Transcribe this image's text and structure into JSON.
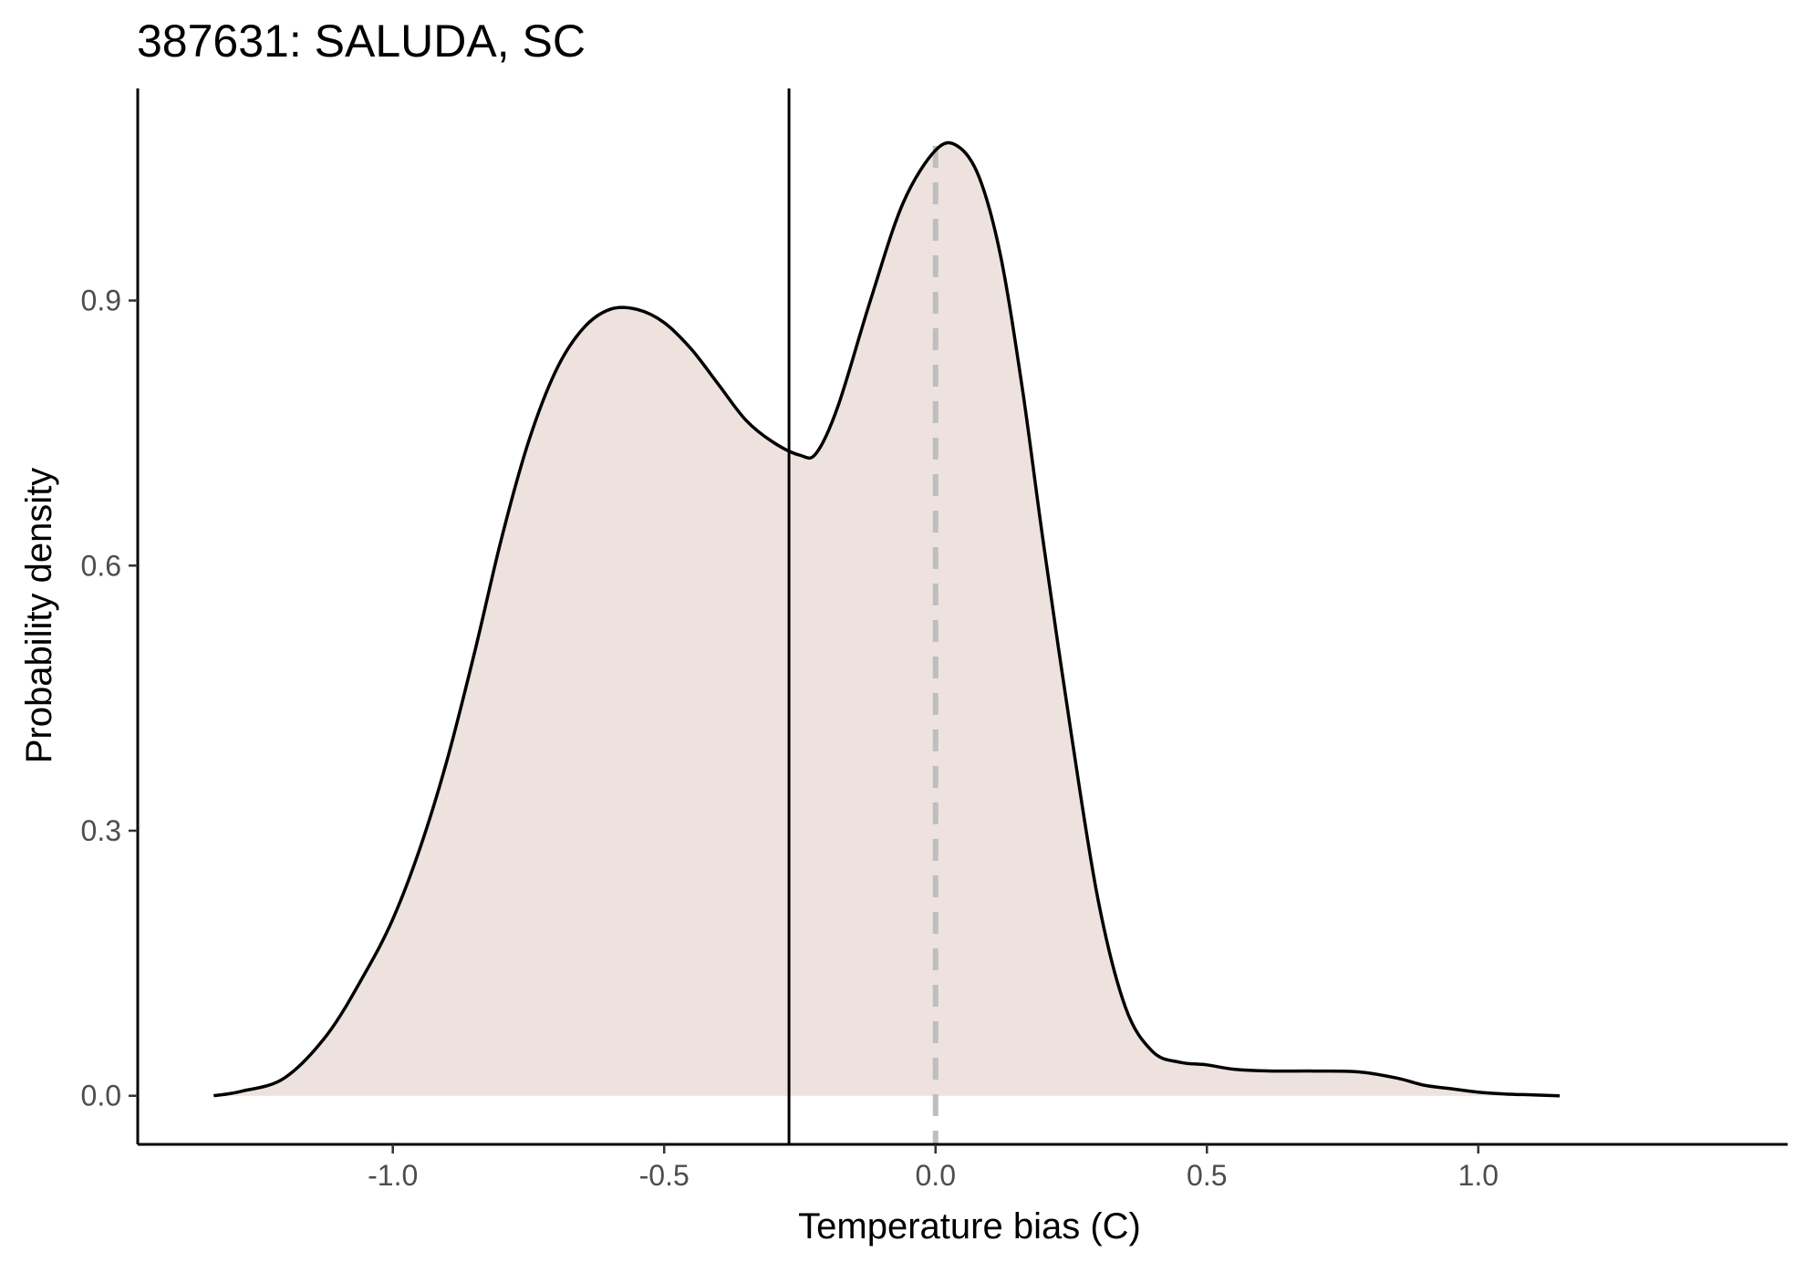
{
  "chart_data": {
    "type": "area",
    "title": "387631: SALUDA, SC",
    "xlabel": "Temperature bias (C)",
    "ylabel": "Probability density",
    "xlim": [
      -1.47,
      1.57
    ],
    "ylim": [
      -0.055,
      1.14
    ],
    "xticks": [
      -1.0,
      -0.5,
      0.0,
      0.5,
      1.0
    ],
    "xtick_labels": [
      "-1.0",
      "-0.5",
      "0.0",
      "0.5",
      "1.0"
    ],
    "yticks": [
      0.0,
      0.3,
      0.6,
      0.9
    ],
    "ytick_labels": [
      "0.0",
      "0.3",
      "0.6",
      "0.9"
    ],
    "grid": false,
    "legend": "none",
    "fill_color": "#ede2de",
    "line_color": "#000000",
    "reference_lines": [
      {
        "type": "vertical",
        "x": -0.27,
        "style": "solid",
        "color": "#000000"
      },
      {
        "type": "vertical",
        "x": 0.0,
        "style": "dashed",
        "color": "#bebebe"
      }
    ],
    "series": [
      {
        "x": [
          -1.33,
          -1.28,
          -1.2,
          -1.12,
          -1.05,
          -1.0,
          -0.95,
          -0.9,
          -0.85,
          -0.8,
          -0.75,
          -0.7,
          -0.65,
          -0.6,
          -0.55,
          -0.5,
          -0.45,
          -0.4,
          -0.35,
          -0.3,
          -0.25,
          -0.22,
          -0.18,
          -0.12,
          -0.06,
          0.0,
          0.04,
          0.08,
          0.12,
          0.16,
          0.2,
          0.25,
          0.3,
          0.35,
          0.4,
          0.45,
          0.5,
          0.55,
          0.62,
          0.7,
          0.78,
          0.85,
          0.9,
          0.95,
          1.0,
          1.05,
          1.1,
          1.15
        ],
        "y": [
          0.0,
          0.005,
          0.02,
          0.07,
          0.14,
          0.2,
          0.28,
          0.38,
          0.5,
          0.63,
          0.74,
          0.82,
          0.868,
          0.89,
          0.89,
          0.875,
          0.845,
          0.805,
          0.765,
          0.74,
          0.725,
          0.727,
          0.78,
          0.9,
          1.01,
          1.07,
          1.075,
          1.04,
          0.95,
          0.8,
          0.62,
          0.41,
          0.22,
          0.1,
          0.05,
          0.038,
          0.035,
          0.03,
          0.028,
          0.028,
          0.027,
          0.02,
          0.012,
          0.008,
          0.004,
          0.002,
          0.001,
          0.0
        ]
      }
    ]
  }
}
